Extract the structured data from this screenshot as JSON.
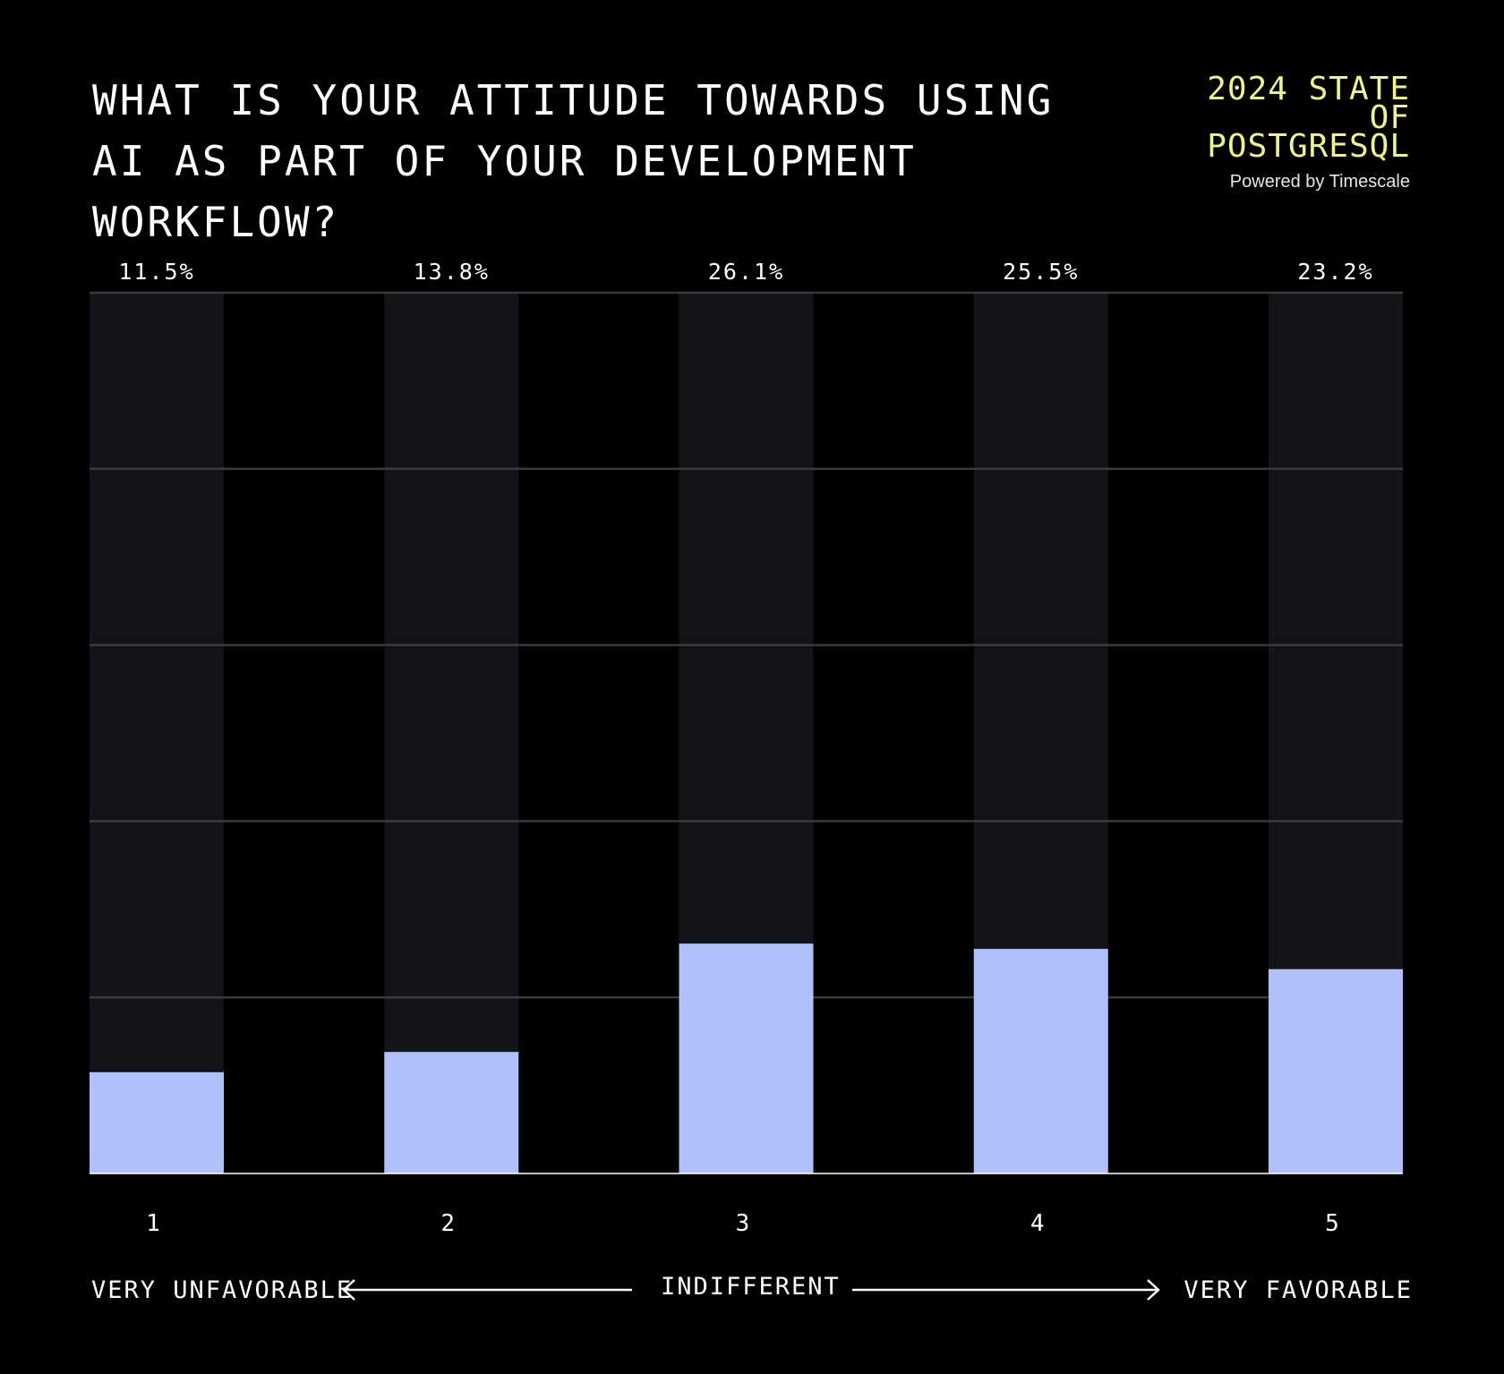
{
  "header": {
    "title": "WHAT IS YOUR ATTITUDE TOWARDS USING AI AS PART OF YOUR DEVELOPMENT WORKFLOW?",
    "brand_title": "2024 STATE OF POSTGRESQL",
    "brand_subtitle": "Powered by Timescale"
  },
  "scale": {
    "left_label": "VERY UNFAVORABLE",
    "mid_label": "INDIFFERENT",
    "right_label": "VERY FAVORABLE"
  },
  "colors": {
    "background": "#000000",
    "bar": "#b1bffa",
    "track": "#131419",
    "grid": "#3a3a3a",
    "brand": "#eef58a"
  },
  "chart_data": {
    "type": "bar",
    "categories": [
      "1",
      "2",
      "3",
      "4",
      "5"
    ],
    "values": [
      11.5,
      13.8,
      26.1,
      25.5,
      23.2
    ],
    "value_labels": [
      "11.5%",
      "13.8%",
      "26.1%",
      "25.5%",
      "23.2%"
    ],
    "title": "WHAT IS YOUR ATTITUDE TOWARDS USING AI AS PART OF YOUR DEVELOPMENT WORKFLOW?",
    "ylim": [
      0,
      100
    ],
    "grid": true,
    "legend": "none"
  }
}
